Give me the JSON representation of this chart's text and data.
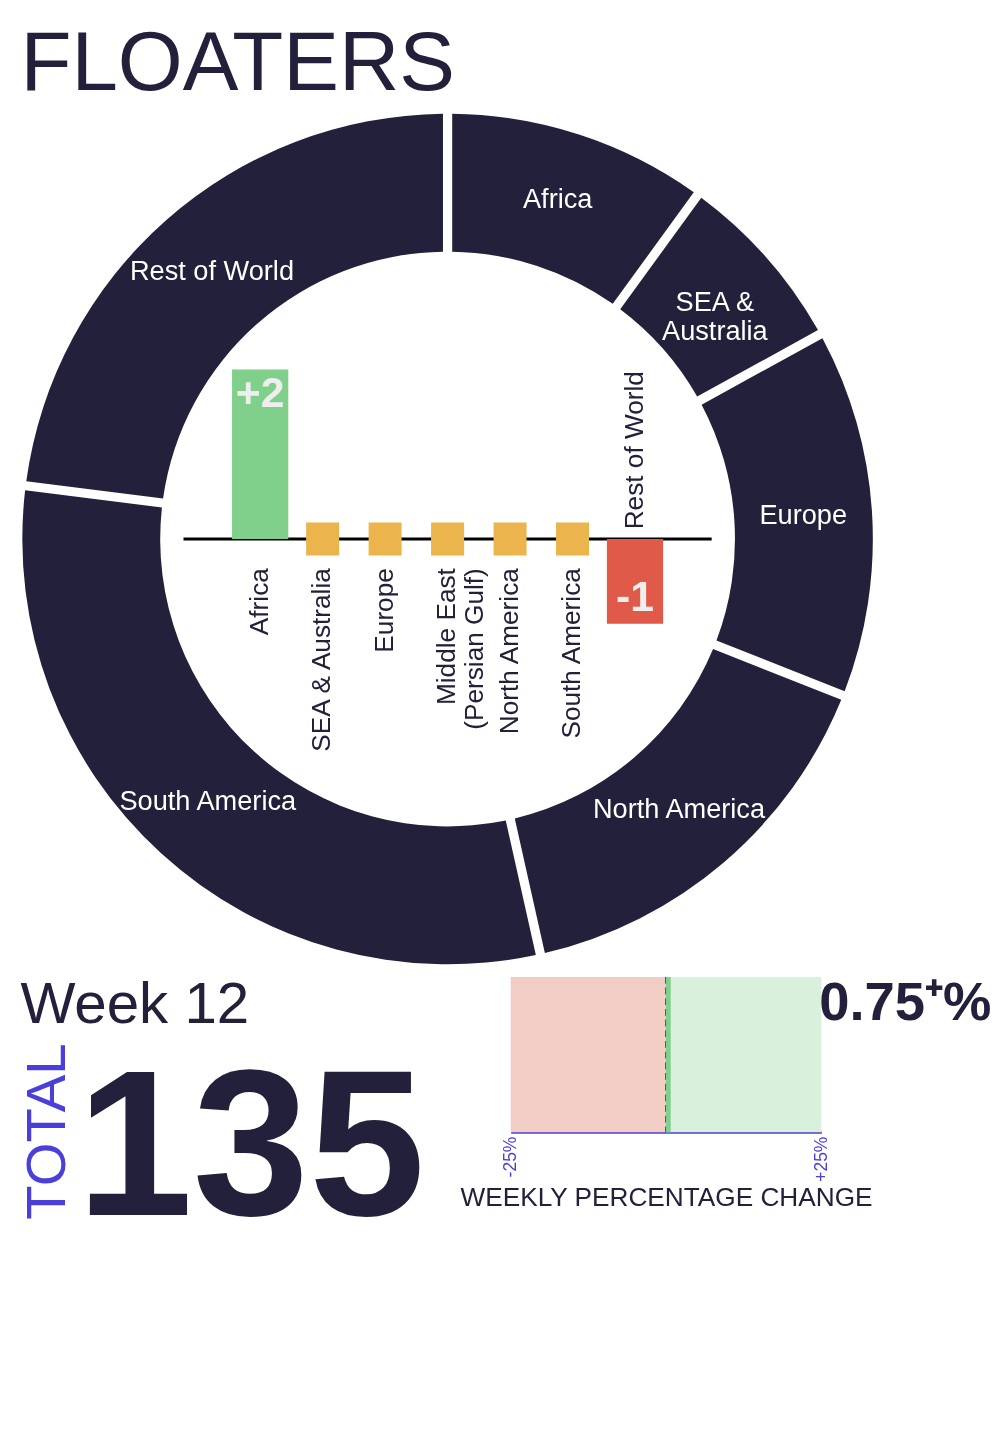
{
  "chart_data": [
    {
      "type": "donut",
      "title": "FLOATERS",
      "categories": [
        "Africa",
        "SEA & Australia",
        "Europe",
        "North America",
        "South America",
        "Rest of World"
      ],
      "values": [
        10,
        7,
        14,
        15.5,
        30.5,
        23
      ],
      "colors": [
        "#22203a",
        "#22203a",
        "#22203a",
        "#22203a",
        "#22203a",
        "#22203a"
      ]
    },
    {
      "type": "bar",
      "categories": [
        "Africa",
        "SEA & Australia",
        "Europe",
        "Middle East (Persian Gulf)",
        "North America",
        "South America",
        "Rest of World"
      ],
      "series": [
        {
          "type": "bar",
          "values": [
            2,
            0,
            0,
            0,
            0,
            0,
            -1
          ],
          "colors": [
            "#80cf8a",
            "#ebb44c",
            "#ebb44c",
            "#ebb44c",
            "#ebb44c",
            "#ebb44c",
            "#e05a4a"
          ],
          "value_labels": [
            "+2",
            null,
            null,
            null,
            null,
            null,
            "-1"
          ]
        },
        {
          "type": "scatter",
          "marker": "square",
          "color": "#ebb44c",
          "values": [
            null,
            0,
            0,
            0,
            0,
            0,
            null
          ]
        }
      ]
    },
    {
      "type": "other",
      "title": "Week 12",
      "annotations": [
        "TOTAL",
        "135"
      ]
    },
    {
      "type": "bar",
      "orientation": "horizontal",
      "categories": [
        null
      ],
      "values": [
        0.75
      ],
      "colors": [
        "#80cf8a"
      ],
      "xlim": [
        -25,
        25
      ],
      "xticks": [
        {
          "value": -25,
          "label": "-25%"
        },
        {
          "value": 25,
          "label": "+25%"
        }
      ],
      "xlabel": "WEEKLY PERCENTAGE CHANGE",
      "value_labels": [
        "0.75⁺%"
      ],
      "bands": [
        {
          "axis": "x",
          "from": -25,
          "to": 0,
          "color": "#f2cdc6"
        },
        {
          "axis": "x",
          "from": 0,
          "to": 25,
          "color": "#d9f0dd"
        }
      ],
      "ref_lines": [
        {
          "axis": "x",
          "value": 0,
          "color": "#4a3fd8",
          "line_style": "dashed"
        }
      ]
    }
  ]
}
